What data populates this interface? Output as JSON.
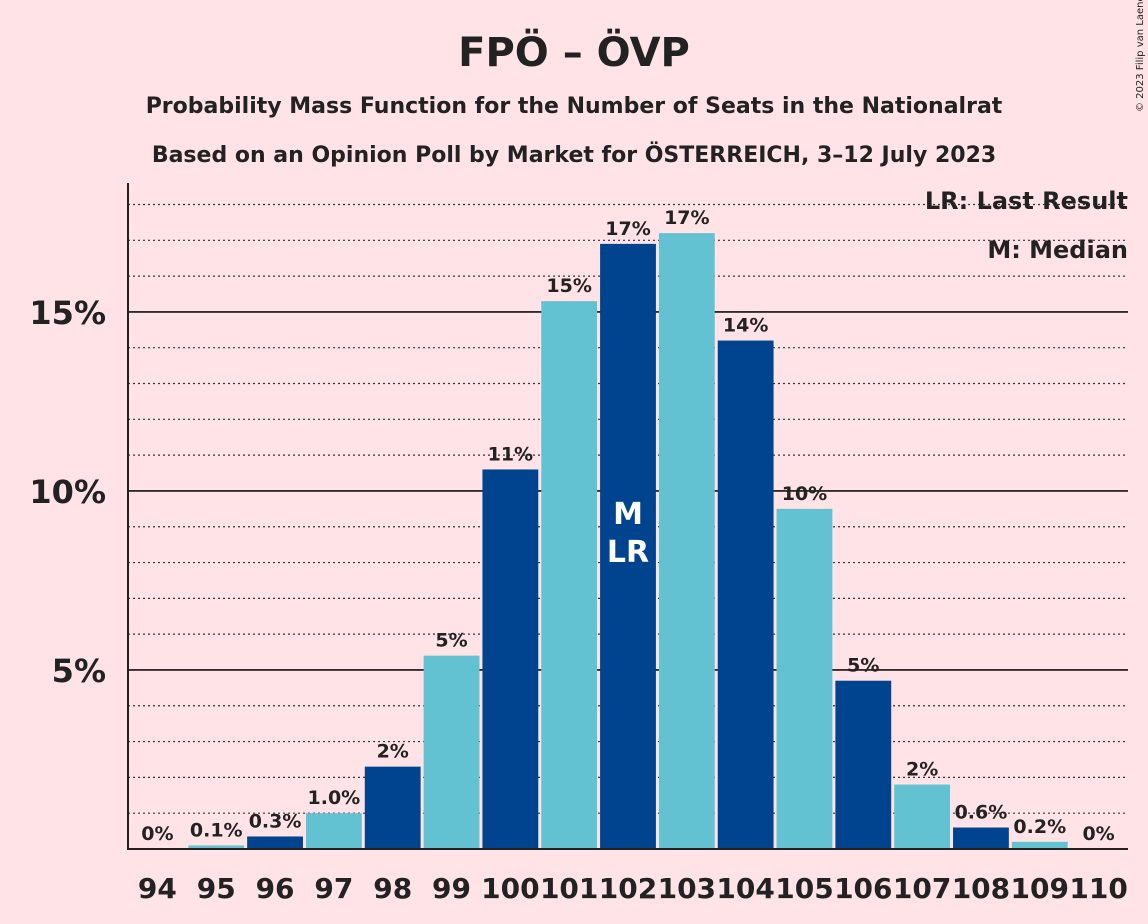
{
  "chart_data": {
    "type": "bar",
    "title": "FPÖ – ÖVP",
    "subtitle": "Probability Mass Function for the Number of Seats in the Nationalrat",
    "subtitle2": "Based on an Opinion Poll by Market for ÖSTERREICH, 3–12 July 2023",
    "copyright": "© 2023 Filip van Laenen",
    "legend": {
      "lr": "LR: Last Result",
      "m": "M: Median",
      "placement": "top-right"
    },
    "xlabel": "",
    "ylabel": "",
    "ylim": [
      0,
      18.6
    ],
    "yticks": [
      {
        "value": 5,
        "label": "5%"
      },
      {
        "value": 10,
        "label": "10%"
      },
      {
        "value": 15,
        "label": "15%"
      }
    ],
    "minor_grid_step": 1,
    "categories": [
      "94",
      "95",
      "96",
      "97",
      "98",
      "99",
      "100",
      "101",
      "102",
      "103",
      "104",
      "105",
      "106",
      "107",
      "108",
      "109",
      "110"
    ],
    "values": [
      0,
      0.1,
      0.35,
      1.0,
      2.3,
      5.4,
      10.6,
      15.3,
      16.9,
      17.2,
      14.2,
      9.5,
      4.7,
      1.8,
      0.6,
      0.2,
      0
    ],
    "value_labels": [
      "0%",
      "0.1%",
      "0.3%",
      "1.0%",
      "2%",
      "5%",
      "11%",
      "15%",
      "17%",
      "17%",
      "14%",
      "10%",
      "5%",
      "2%",
      "0.6%",
      "0.2%",
      "0%"
    ],
    "markers": {
      "102": [
        "M",
        "LR"
      ]
    },
    "colors": {
      "dark": "#00438f",
      "light": "#63c2d2",
      "background": "#ffe3e6"
    }
  }
}
